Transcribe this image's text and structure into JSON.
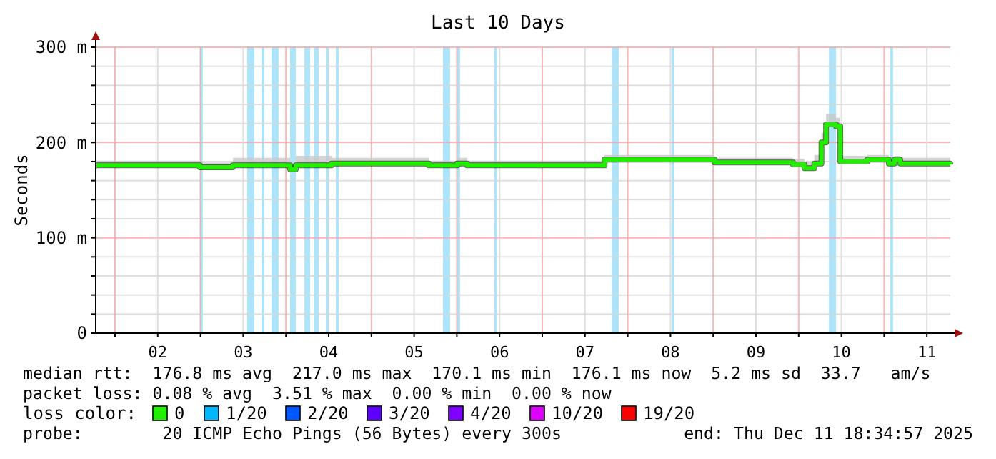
{
  "chart_data": {
    "type": "step",
    "title": "Last 10 Days",
    "ylabel": "Seconds",
    "legend_title": "loss color:",
    "legend": "bottom",
    "grid": true,
    "xlim": [
      "2025-12-01T18:35",
      "2025-12-11T18:35"
    ],
    "xticks": [
      {
        "value": "2025-12-02T00:00",
        "label": null
      },
      {
        "value": "2025-12-02T12:00",
        "label": "02"
      },
      {
        "value": "2025-12-03T00:00",
        "label": null
      },
      {
        "value": "2025-12-03T12:00",
        "label": "03"
      },
      {
        "value": "2025-12-04T00:00",
        "label": null
      },
      {
        "value": "2025-12-04T12:00",
        "label": "04"
      },
      {
        "value": "2025-12-05T00:00",
        "label": null
      },
      {
        "value": "2025-12-05T12:00",
        "label": "05"
      },
      {
        "value": "2025-12-06T00:00",
        "label": null
      },
      {
        "value": "2025-12-06T12:00",
        "label": "06"
      },
      {
        "value": "2025-12-07T00:00",
        "label": null
      },
      {
        "value": "2025-12-07T12:00",
        "label": "07"
      },
      {
        "value": "2025-12-08T00:00",
        "label": null
      },
      {
        "value": "2025-12-08T12:00",
        "label": "08"
      },
      {
        "value": "2025-12-09T00:00",
        "label": null
      },
      {
        "value": "2025-12-09T12:00",
        "label": "09"
      },
      {
        "value": "2025-12-10T00:00",
        "label": null
      },
      {
        "value": "2025-12-10T12:00",
        "label": "10"
      },
      {
        "value": "2025-12-11T00:00",
        "label": null
      },
      {
        "value": "2025-12-11T12:00",
        "label": "11"
      }
    ],
    "ylim": [
      0,
      300
    ],
    "yticks": [
      {
        "value": 0,
        "label": "0"
      },
      {
        "value": 20,
        "label": null
      },
      {
        "value": 40,
        "label": null
      },
      {
        "value": 60,
        "label": null
      },
      {
        "value": 80,
        "label": null
      },
      {
        "value": 100,
        "label": "100 m"
      },
      {
        "value": 120,
        "label": null
      },
      {
        "value": 140,
        "label": null
      },
      {
        "value": 160,
        "label": null
      },
      {
        "value": 180,
        "label": null
      },
      {
        "value": 200,
        "label": "200 m"
      },
      {
        "value": 220,
        "label": null
      },
      {
        "value": 240,
        "label": null
      },
      {
        "value": 260,
        "label": null
      },
      {
        "value": 280,
        "label": null
      },
      {
        "value": 300,
        "label": "300 m"
      }
    ],
    "series": [
      {
        "name": "0",
        "color": "#22ee00",
        "x": [
          "2025-12-01T18:35",
          "2025-12-02T23:50",
          "2025-12-03T09:06",
          "2025-12-04T01:10",
          "2025-12-04T02:46",
          "2025-12-04T12:48",
          "2025-12-05T16:06",
          "2025-12-06T00:06",
          "2025-12-06T02:54",
          "2025-12-07T17:30",
          "2025-12-09T00:24",
          "2025-12-09T22:24",
          "2025-12-10T01:36",
          "2025-12-10T04:24",
          "2025-12-10T06:24",
          "2025-12-10T07:42",
          "2025-12-10T10:30",
          "2025-12-10T11:42",
          "2025-12-10T19:18",
          "2025-12-11T01:18",
          "2025-12-11T02:54",
          "2025-12-11T04:30",
          "2025-12-11T18:35"
        ],
        "values": [
          176,
          174,
          176,
          172,
          176,
          178,
          176,
          178,
          176,
          182,
          179,
          177,
          173,
          178,
          200,
          219,
          217,
          180,
          182,
          178,
          182,
          178,
          177
        ],
        "lower": [
          175,
          173,
          175,
          171,
          175,
          177,
          175,
          177,
          175,
          181,
          178,
          176,
          172,
          177,
          199,
          218,
          216,
          179,
          181,
          177,
          181,
          177,
          176
        ],
        "upper": [
          181,
          179,
          184,
          178,
          186,
          184,
          181,
          184,
          181,
          187,
          184,
          183,
          180,
          187,
          210,
          230,
          226,
          186,
          187,
          184,
          186,
          184,
          182
        ]
      },
      {
        "name": "1/20",
        "color": "#00b8ff"
      },
      {
        "name": "2/20",
        "color": "#0059ff"
      },
      {
        "name": "3/20",
        "color": "#5e00ff"
      },
      {
        "name": "4/20",
        "color": "#7e00ff"
      },
      {
        "name": "10/20",
        "color": "#dd00ff"
      },
      {
        "name": "19/20",
        "color": "#ff0000"
      }
    ],
    "bands": [
      {
        "axis": "x",
        "from": "2025-12-02T23:50",
        "to": "2025-12-03T00:40",
        "color": "#aee4fa"
      },
      {
        "axis": "x",
        "from": "2025-12-03T13:07",
        "to": "2025-12-03T15:08",
        "color": "#aee4fa"
      },
      {
        "axis": "x",
        "from": "2025-12-03T17:08",
        "to": "2025-12-03T17:56",
        "color": "#aee4fa"
      },
      {
        "axis": "x",
        "from": "2025-12-03T19:56",
        "to": "2025-12-03T21:56",
        "color": "#aee4fa"
      },
      {
        "axis": "x",
        "from": "2025-12-04T01:10",
        "to": "2025-12-04T02:46",
        "color": "#aee4fa"
      },
      {
        "axis": "x",
        "from": "2025-12-04T05:12",
        "to": "2025-12-04T06:48",
        "color": "#aee4fa"
      },
      {
        "axis": "x",
        "from": "2025-12-04T08:00",
        "to": "2025-12-04T09:12",
        "color": "#aee4fa"
      },
      {
        "axis": "x",
        "from": "2025-12-04T11:12",
        "to": "2025-12-04T12:00",
        "color": "#aee4fa"
      },
      {
        "axis": "x",
        "from": "2025-12-04T14:00",
        "to": "2025-12-04T14:48",
        "color": "#aee4fa"
      },
      {
        "axis": "x",
        "from": "2025-12-05T20:06",
        "to": "2025-12-05T22:06",
        "color": "#aee4fa"
      },
      {
        "axis": "x",
        "from": "2025-12-06T00:06",
        "to": "2025-12-06T00:54",
        "color": "#aee4fa"
      },
      {
        "axis": "x",
        "from": "2025-12-06T10:30",
        "to": "2025-12-06T11:18",
        "color": "#aee4fa"
      },
      {
        "axis": "x",
        "from": "2025-12-07T19:30",
        "to": "2025-12-07T21:30",
        "color": "#aee4fa"
      },
      {
        "axis": "x",
        "from": "2025-12-08T12:18",
        "to": "2025-12-08T13:06",
        "color": "#aee4fa"
      },
      {
        "axis": "x",
        "from": "2025-12-10T08:30",
        "to": "2025-12-10T10:30",
        "color": "#aee4fa"
      },
      {
        "axis": "x",
        "from": "2025-12-11T01:42",
        "to": "2025-12-11T02:30",
        "color": "#aee4fa"
      }
    ],
    "annotations": [
      "median rtt:  176.8 ms avg  217.0 ms max  170.1 ms min  176.1 ms now  5.2 ms sd  33.7   am/s",
      "packet loss: 0.08 % avg  3.51 % max  0.00 % min  0.00 % now",
      "probe:        20 ICMP Echo Pings (56 Bytes) every 300s",
      "end: Thu Dec 11 18:34:57 2025"
    ]
  }
}
